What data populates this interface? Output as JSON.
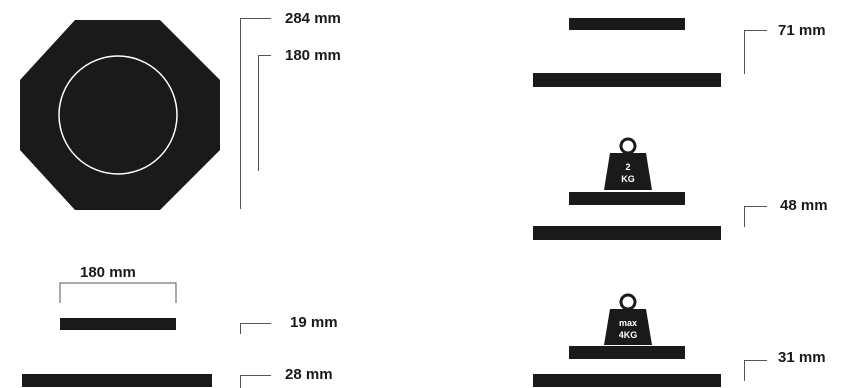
{
  "plate": {
    "outer_label": "284 mm",
    "inner_label": "180 mm"
  },
  "side_view": {
    "width_label": "180 mm",
    "thin_label": "19 mm",
    "thick_label": "28 mm"
  },
  "stacks": [
    {
      "height_label": "71 mm"
    },
    {
      "height_label": "48 mm",
      "weight_line1": "2",
      "weight_line2": "KG"
    },
    {
      "height_label": "31 mm",
      "weight_line1": "max",
      "weight_line2": "4KG"
    }
  ],
  "colors": {
    "ink": "#1a1a1a",
    "background": "#ffffff",
    "leader": "#555555"
  }
}
